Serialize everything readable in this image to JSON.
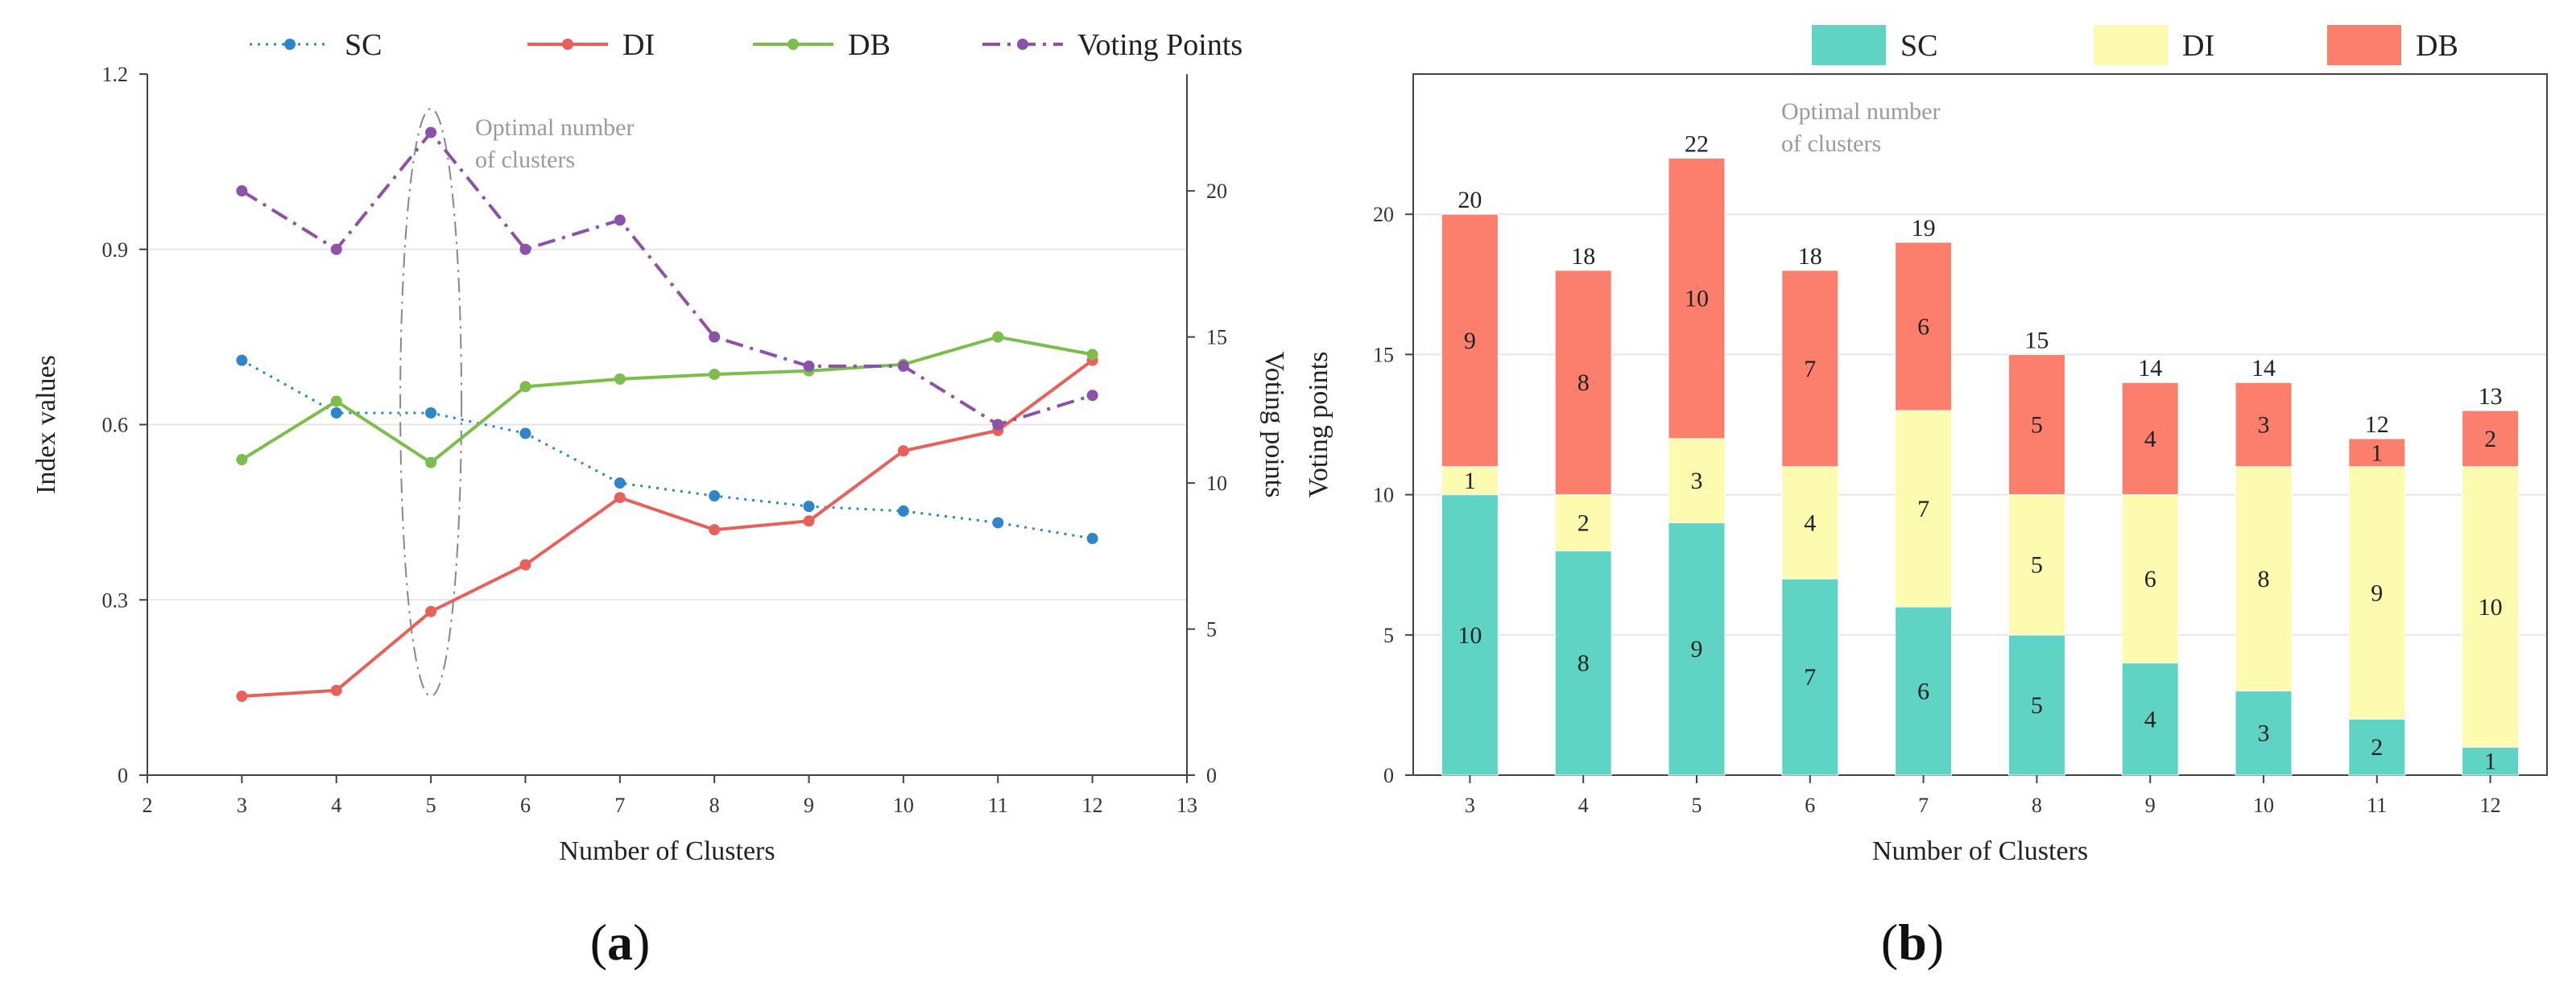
{
  "chart_data": [
    {
      "type": "line",
      "panel": "a",
      "panel_label": "a",
      "xlabel": "Number of Clusters",
      "ylabel": "Index values",
      "y2label": "Voting points",
      "xlim": [
        2,
        13
      ],
      "ylim": [
        0,
        1.2
      ],
      "y2lim": [
        0,
        24
      ],
      "x_ticks": [
        "2",
        "3",
        "4",
        "5",
        "6",
        "7",
        "8",
        "9",
        "10",
        "11",
        "12",
        "13"
      ],
      "y_ticks": [
        "0",
        "0.3",
        "0.6",
        "0.9",
        "1.2"
      ],
      "y2_ticks": [
        "0",
        "5",
        "10",
        "15",
        "20"
      ],
      "annotation": [
        "Optimal number",
        "of clusters"
      ],
      "x": [
        3,
        4,
        5,
        6,
        7,
        8,
        9,
        10,
        11,
        12
      ],
      "series": [
        {
          "name": "SC",
          "axis": "left",
          "color": "#2e86c8",
          "dash": "dot",
          "values": [
            0.71,
            0.62,
            0.62,
            0.585,
            0.5,
            0.478,
            0.46,
            0.452,
            0.432,
            0.405
          ]
        },
        {
          "name": "DI",
          "axis": "left",
          "color": "#e8605a",
          "dash": "solid",
          "values": [
            0.135,
            0.145,
            0.28,
            0.36,
            0.475,
            0.42,
            0.435,
            0.555,
            0.59,
            0.71
          ]
        },
        {
          "name": "DB",
          "axis": "left",
          "color": "#7cbd4b",
          "dash": "solid",
          "values": [
            0.54,
            0.64,
            0.535,
            0.665,
            0.678,
            0.686,
            0.692,
            0.703,
            0.75,
            0.72
          ]
        },
        {
          "name": "Voting Points",
          "axis": "right",
          "color": "#8a52a8",
          "dash": "dashdot",
          "values": [
            20,
            18,
            22,
            18,
            19,
            15,
            14,
            14,
            12,
            13
          ]
        }
      ]
    },
    {
      "type": "bar",
      "panel": "b",
      "panel_label": "b",
      "stacked": true,
      "xlabel": "Number of Clusters",
      "ylabel": "Voting points",
      "ylim": [
        0,
        25
      ],
      "y_ticks": [
        "0",
        "5",
        "10",
        "15",
        "20"
      ],
      "categories": [
        "3",
        "4",
        "5",
        "6",
        "7",
        "8",
        "9",
        "10",
        "11",
        "12"
      ],
      "annotation": [
        "Optimal number",
        "of clusters"
      ],
      "highlight_category": "5",
      "highlight_color": "#e8271e",
      "series": [
        {
          "name": "SC",
          "color": "#5fd4c4",
          "values": [
            10,
            8,
            9,
            7,
            6,
            5,
            4,
            3,
            2,
            1
          ]
        },
        {
          "name": "DI",
          "color": "#fdfbb0",
          "values": [
            1,
            2,
            3,
            4,
            7,
            5,
            6,
            8,
            9,
            10
          ]
        },
        {
          "name": "DB",
          "color": "#fc7f6e",
          "values": [
            9,
            8,
            10,
            7,
            6,
            5,
            4,
            3,
            1,
            2
          ]
        }
      ],
      "totals": [
        20,
        18,
        22,
        18,
        19,
        15,
        14,
        14,
        12,
        13
      ]
    }
  ]
}
